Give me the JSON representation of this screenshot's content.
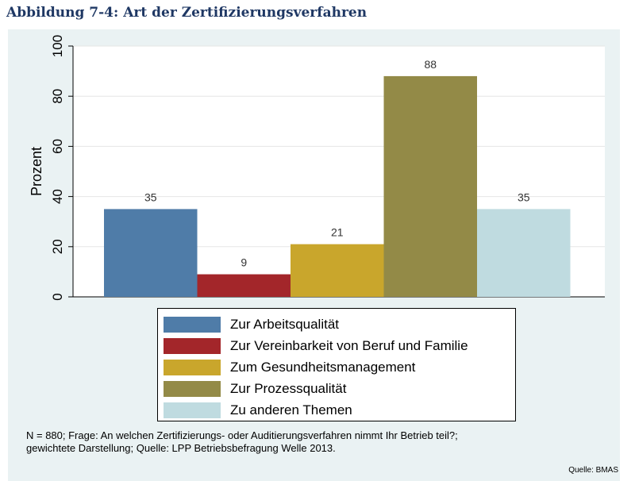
{
  "figure_title": "Abbildung 7-4: Art der Zertifizierungsverfahren",
  "chart_data": {
    "type": "bar",
    "title": "Abbildung 7-4: Art der Zertifizierungsverfahren",
    "xlabel": "",
    "ylabel": "Prozent",
    "ylim": [
      0,
      100
    ],
    "yticks": [
      0,
      20,
      40,
      60,
      80,
      100
    ],
    "grid": true,
    "legend_position": "bottom",
    "categories": [
      "Zur Arbeitsqualität",
      "Zur Vereinbarkeit von Beruf und Familie",
      "Zum Gesundheitsmanagement",
      "Zur Prozessqualität",
      "Zu anderen Themen"
    ],
    "values": [
      35,
      9,
      21,
      88,
      35
    ],
    "data_labels": [
      "35",
      "9",
      "21",
      "88",
      "35"
    ],
    "colors": [
      "#4f7ca8",
      "#a3262a",
      "#c9a62c",
      "#938a47",
      "#bfdbe0"
    ]
  },
  "footnote": {
    "line1": "N = 880; Frage: An welchen Zertifizierungs- oder Auditierungsverfahren nimmt Ihr Betrieb teil?;",
    "line2": "gewichtete Darstellung; Quelle: LPP Betriebsbefragung Welle 2013."
  },
  "source": "Quelle: BMAS"
}
